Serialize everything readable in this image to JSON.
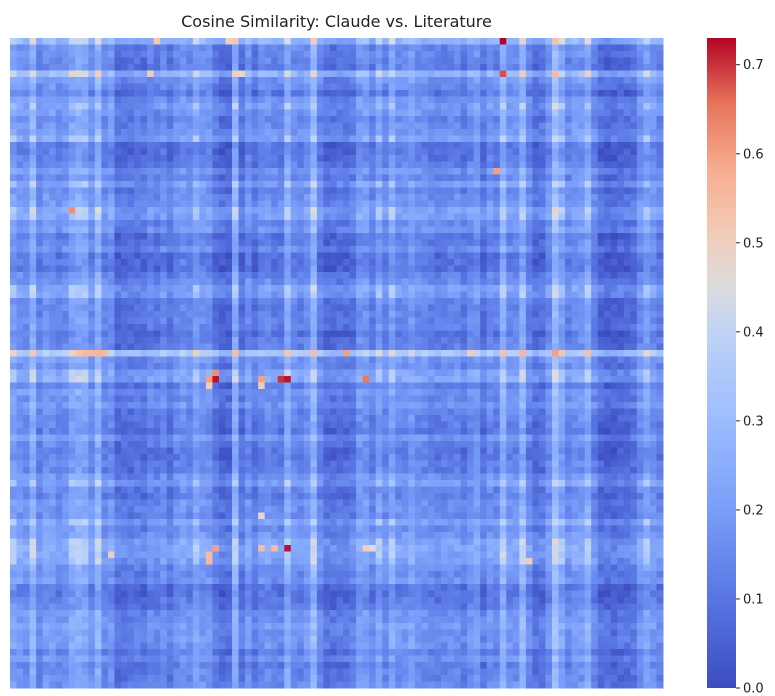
{
  "chart_data": {
    "type": "heatmap",
    "title": "Cosine Similarity: Claude vs. Literature",
    "xlabel": "",
    "ylabel": "",
    "colormap": "coolwarm",
    "vmin": 0.0,
    "vmax": 0.73,
    "colorbar_ticks": [
      "0.0",
      "0.1",
      "0.2",
      "0.3",
      "0.4",
      "0.5",
      "0.6",
      "0.7"
    ],
    "colorbar_tick_values": [
      0.0,
      0.1,
      0.2,
      0.3,
      0.4,
      0.5,
      0.6,
      0.7
    ],
    "n_rows": 100,
    "n_cols": 100,
    "base_value": 0.16,
    "col_effects": [
      {
        "col": 0,
        "v": 0.05
      },
      {
        "col": 3,
        "v": 0.1
      },
      {
        "col": 9,
        "v": 0.06
      },
      {
        "col": 10,
        "v": 0.08
      },
      {
        "col": 11,
        "v": 0.07
      },
      {
        "col": 13,
        "v": 0.1
      },
      {
        "col": 16,
        "v": -0.07
      },
      {
        "col": 17,
        "v": -0.06
      },
      {
        "col": 18,
        "v": -0.06
      },
      {
        "col": 19,
        "v": -0.05
      },
      {
        "col": 20,
        "v": -0.06
      },
      {
        "col": 22,
        "v": -0.04
      },
      {
        "col": 24,
        "v": -0.05
      },
      {
        "col": 28,
        "v": 0.05
      },
      {
        "col": 31,
        "v": -0.05
      },
      {
        "col": 32,
        "v": -0.08
      },
      {
        "col": 33,
        "v": -0.08
      },
      {
        "col": 34,
        "v": 0.09
      },
      {
        "col": 35,
        "v": -0.06
      },
      {
        "col": 37,
        "v": -0.05
      },
      {
        "col": 42,
        "v": 0.08
      },
      {
        "col": 46,
        "v": 0.12
      },
      {
        "col": 48,
        "v": -0.07
      },
      {
        "col": 49,
        "v": -0.07
      },
      {
        "col": 50,
        "v": -0.06
      },
      {
        "col": 51,
        "v": -0.06
      },
      {
        "col": 52,
        "v": -0.05
      },
      {
        "col": 56,
        "v": 0.05
      },
      {
        "col": 58,
        "v": 0.06
      },
      {
        "col": 61,
        "v": 0.04
      },
      {
        "col": 69,
        "v": -0.04
      },
      {
        "col": 72,
        "v": -0.05
      },
      {
        "col": 75,
        "v": 0.1
      },
      {
        "col": 78,
        "v": 0.1
      },
      {
        "col": 80,
        "v": -0.07
      },
      {
        "col": 81,
        "v": -0.06
      },
      {
        "col": 83,
        "v": 0.14
      },
      {
        "col": 84,
        "v": 0.06
      },
      {
        "col": 88,
        "v": 0.08
      },
      {
        "col": 90,
        "v": -0.08
      },
      {
        "col": 91,
        "v": -0.09
      },
      {
        "col": 92,
        "v": -0.09
      },
      {
        "col": 93,
        "v": -0.08
      },
      {
        "col": 94,
        "v": -0.07
      },
      {
        "col": 95,
        "v": -0.06
      },
      {
        "col": 97,
        "v": 0.05
      }
    ],
    "row_effects": [
      {
        "row": 0,
        "v": 0.12
      },
      {
        "row": 5,
        "v": 0.13
      },
      {
        "row": 6,
        "v": 0.03
      },
      {
        "row": 8,
        "v": -0.04
      },
      {
        "row": 10,
        "v": 0.05
      },
      {
        "row": 15,
        "v": 0.06
      },
      {
        "row": 16,
        "v": -0.05
      },
      {
        "row": 17,
        "v": -0.05
      },
      {
        "row": 18,
        "v": -0.04
      },
      {
        "row": 22,
        "v": 0.05
      },
      {
        "row": 26,
        "v": 0.07
      },
      {
        "row": 27,
        "v": 0.06
      },
      {
        "row": 30,
        "v": -0.04
      },
      {
        "row": 33,
        "v": -0.06
      },
      {
        "row": 34,
        "v": -0.05
      },
      {
        "row": 35,
        "v": -0.06
      },
      {
        "row": 38,
        "v": 0.06
      },
      {
        "row": 39,
        "v": 0.05
      },
      {
        "row": 45,
        "v": -0.05
      },
      {
        "row": 48,
        "v": 0.2
      },
      {
        "row": 49,
        "v": 0.03
      },
      {
        "row": 51,
        "v": 0.07
      },
      {
        "row": 52,
        "v": 0.08
      },
      {
        "row": 56,
        "v": 0.03
      },
      {
        "row": 60,
        "v": -0.04
      },
      {
        "row": 63,
        "v": -0.04
      },
      {
        "row": 64,
        "v": -0.04
      },
      {
        "row": 68,
        "v": 0.05
      },
      {
        "row": 74,
        "v": 0.06
      },
      {
        "row": 77,
        "v": 0.07
      },
      {
        "row": 78,
        "v": 0.08
      },
      {
        "row": 79,
        "v": 0.07
      },
      {
        "row": 80,
        "v": 0.06
      },
      {
        "row": 84,
        "v": -0.05
      },
      {
        "row": 85,
        "v": -0.05
      },
      {
        "row": 86,
        "v": -0.04
      },
      {
        "row": 90,
        "v": 0.04
      },
      {
        "row": 92,
        "v": 0.03
      },
      {
        "row": 96,
        "v": -0.03
      }
    ],
    "hot_cells": [
      {
        "row": 0,
        "col": 75,
        "v": 0.73
      },
      {
        "row": 5,
        "col": 75,
        "v": 0.68
      },
      {
        "row": 0,
        "col": 33,
        "v": 0.5
      },
      {
        "row": 0,
        "col": 34,
        "v": 0.52
      },
      {
        "row": 5,
        "col": 34,
        "v": 0.5
      },
      {
        "row": 5,
        "col": 35,
        "v": 0.48
      },
      {
        "row": 5,
        "col": 9,
        "v": 0.48
      },
      {
        "row": 5,
        "col": 21,
        "v": 0.5
      },
      {
        "row": 0,
        "col": 22,
        "v": 0.52
      },
      {
        "row": 26,
        "col": 9,
        "v": 0.62
      },
      {
        "row": 26,
        "col": 13,
        "v": 0.45
      },
      {
        "row": 48,
        "col": 11,
        "v": 0.55
      },
      {
        "row": 48,
        "col": 12,
        "v": 0.55
      },
      {
        "row": 48,
        "col": 14,
        "v": 0.55
      },
      {
        "row": 48,
        "col": 51,
        "v": 0.6
      },
      {
        "row": 48,
        "col": 70,
        "v": 0.5
      },
      {
        "row": 51,
        "col": 31,
        "v": 0.62
      },
      {
        "row": 52,
        "col": 31,
        "v": 0.72
      },
      {
        "row": 52,
        "col": 30,
        "v": 0.6
      },
      {
        "row": 52,
        "col": 38,
        "v": 0.6
      },
      {
        "row": 52,
        "col": 41,
        "v": 0.7
      },
      {
        "row": 52,
        "col": 42,
        "v": 0.72
      },
      {
        "row": 53,
        "col": 30,
        "v": 0.5
      },
      {
        "row": 53,
        "col": 38,
        "v": 0.5
      },
      {
        "row": 52,
        "col": 54,
        "v": 0.65
      },
      {
        "row": 20,
        "col": 74,
        "v": 0.6
      },
      {
        "row": 78,
        "col": 31,
        "v": 0.6
      },
      {
        "row": 79,
        "col": 30,
        "v": 0.55
      },
      {
        "row": 80,
        "col": 30,
        "v": 0.55
      },
      {
        "row": 78,
        "col": 42,
        "v": 0.72
      },
      {
        "row": 78,
        "col": 38,
        "v": 0.55
      },
      {
        "row": 78,
        "col": 40,
        "v": 0.55
      },
      {
        "row": 78,
        "col": 54,
        "v": 0.5
      },
      {
        "row": 78,
        "col": 55,
        "v": 0.45
      },
      {
        "row": 79,
        "col": 15,
        "v": 0.5
      },
      {
        "row": 73,
        "col": 38,
        "v": 0.48
      },
      {
        "row": 80,
        "col": 79,
        "v": 0.5
      }
    ]
  }
}
